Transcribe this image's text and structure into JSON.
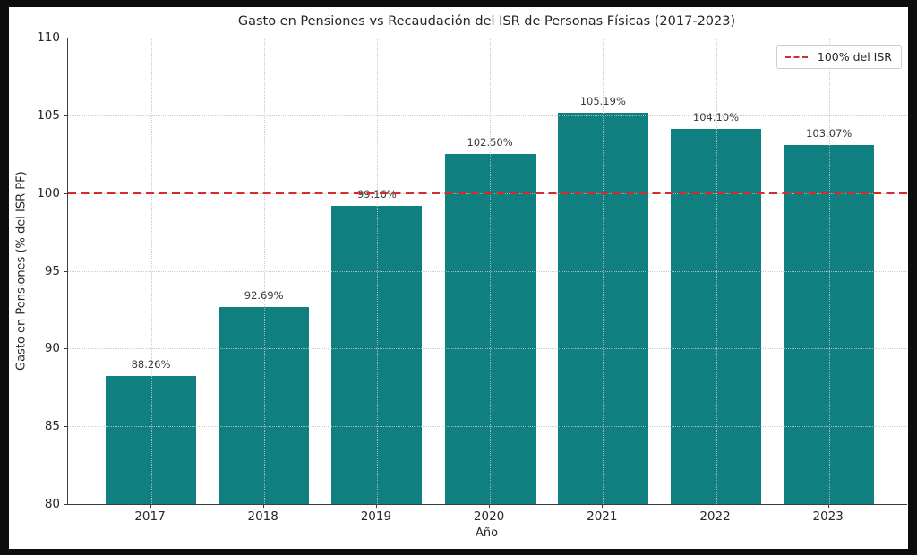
{
  "frame": {
    "outer_background": "#0d0d0d",
    "canvas_background": "#ffffff"
  },
  "chart_data": {
    "type": "bar",
    "title": "Gasto en Pensiones vs Recaudación del ISR de Personas Físicas (2017-2023)",
    "xlabel": "Año",
    "ylabel": "Gasto en Pensiones (% del ISR PF)",
    "categories": [
      "2017",
      "2018",
      "2019",
      "2020",
      "2021",
      "2022",
      "2023"
    ],
    "values": [
      88.26,
      92.69,
      99.16,
      102.5,
      105.19,
      104.1,
      103.07
    ],
    "bar_labels": [
      "88.26%",
      "92.69%",
      "99.16%",
      "102.50%",
      "105.19%",
      "104.10%",
      "103.07%"
    ],
    "ylim": [
      80,
      110
    ],
    "yticks": [
      80,
      85,
      90,
      95,
      100,
      105,
      110
    ],
    "bar_color": "#0f7f80",
    "grid": true,
    "grid_style": "dotted",
    "reference_line": {
      "value": 100,
      "color": "#d62b2b",
      "style": "dashed",
      "label": "100% del ISR"
    },
    "legend": {
      "position": "upper right",
      "entries": [
        {
          "label": "100% del ISR",
          "color": "#d62b2b",
          "style": "dashed"
        }
      ]
    }
  }
}
